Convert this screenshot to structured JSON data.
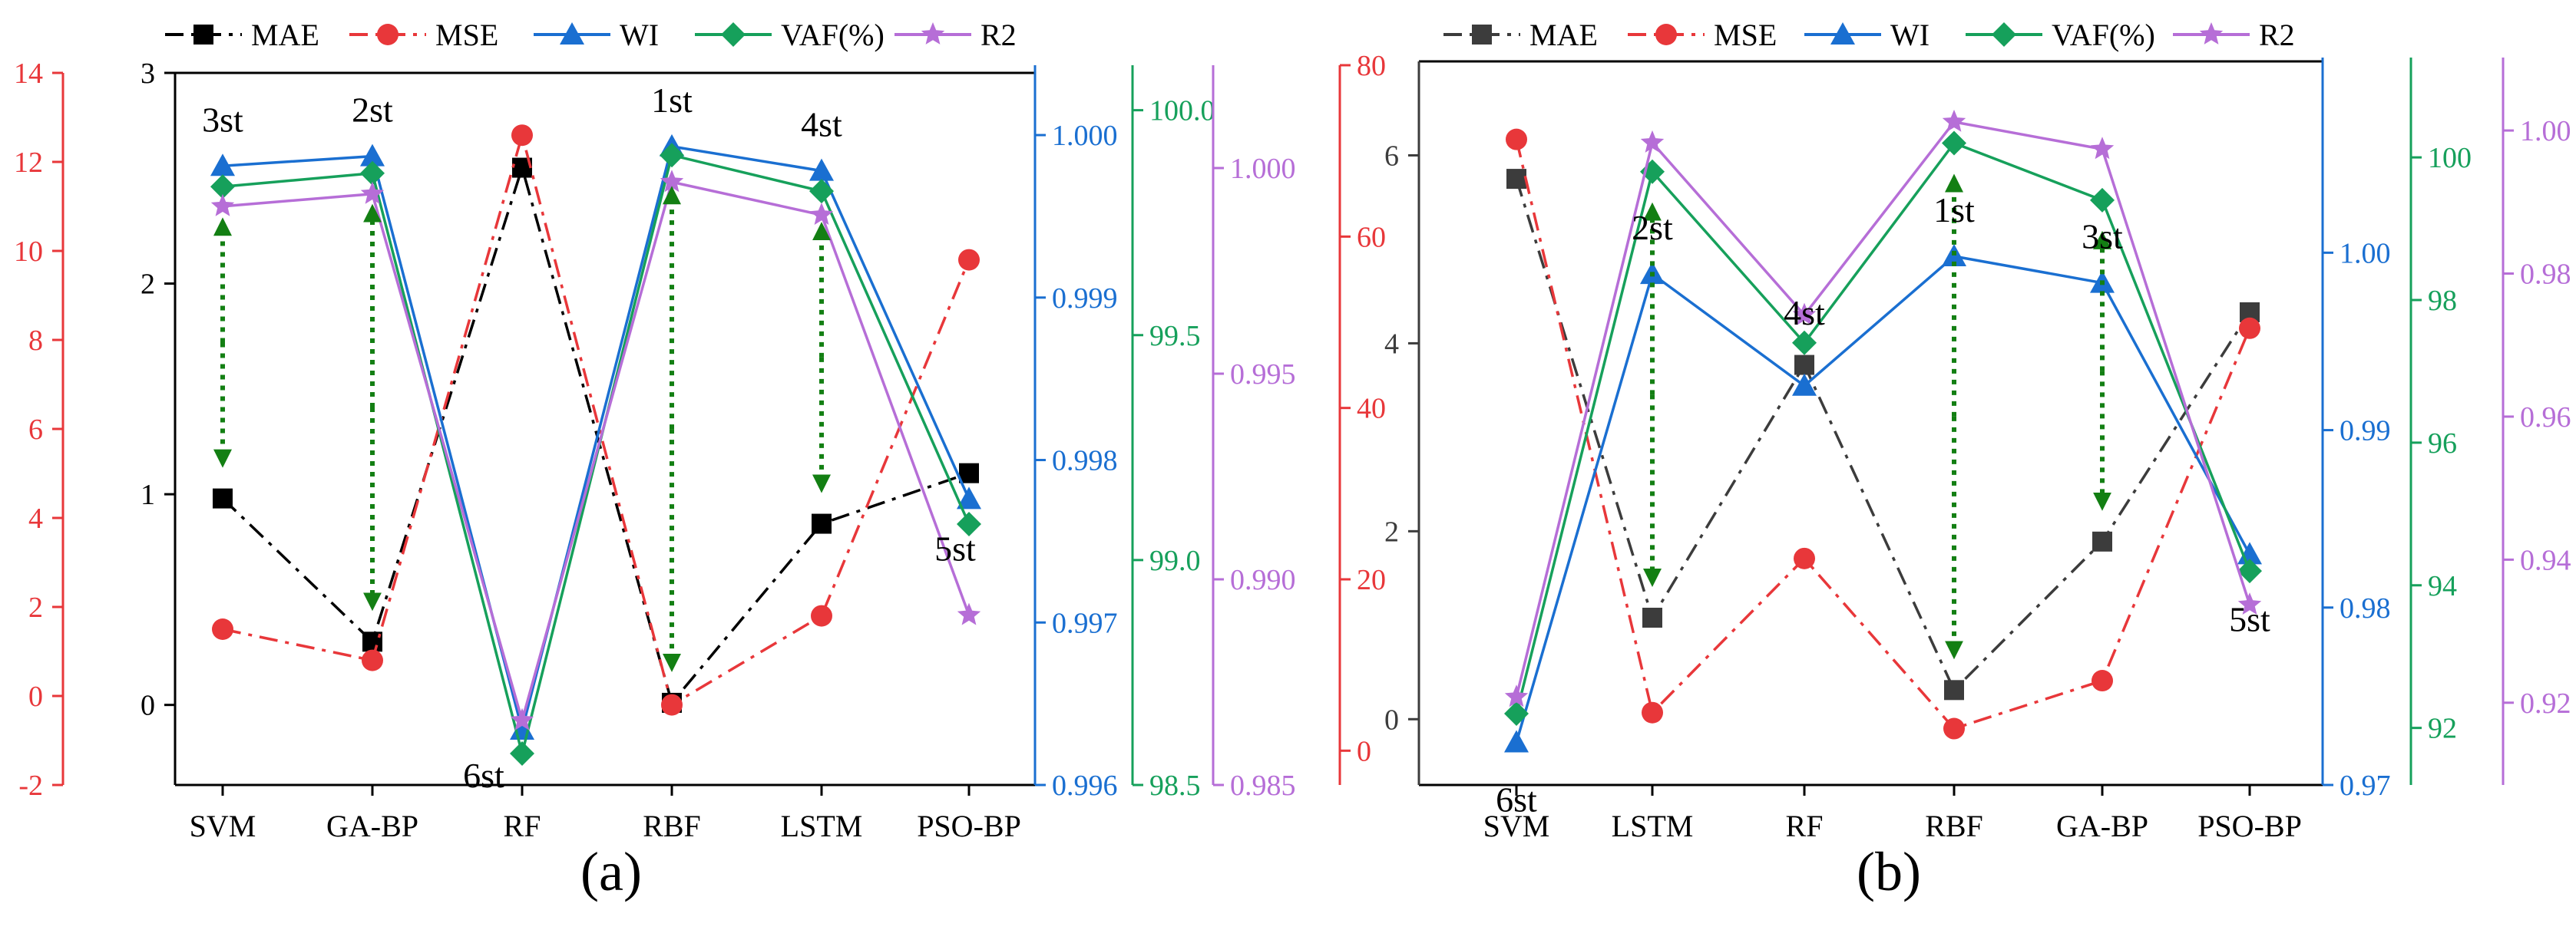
{
  "legend": {
    "entries": [
      {
        "name": "MAE",
        "color": "#000000",
        "dash": "dashdot",
        "marker": "square"
      },
      {
        "name": "MSE",
        "color": "#e8373a",
        "dash": "dashdot",
        "marker": "circle"
      },
      {
        "name": "WI",
        "color": "#1a6fd1",
        "dash": "solid",
        "marker": "triangle"
      },
      {
        "name": "VAF(%)",
        "color": "#16a05b",
        "dash": "solid",
        "marker": "diamond"
      },
      {
        "name": "R2",
        "color": "#b66ed7",
        "dash": "solid",
        "marker": "star"
      }
    ]
  },
  "colors": {
    "mae_a": "#000000",
    "mae_b": "#3c3c3c",
    "mse": "#e8373a",
    "wi": "#1a6fd1",
    "vaf": "#16a05b",
    "r2": "#b66ed7",
    "arrow": "#137f13"
  },
  "chart_data": [
    {
      "type": "line",
      "panel_label": "(a)",
      "categories": [
        "SVM",
        "GA-BP",
        "RF",
        "RBF",
        "LSTM",
        "PSO-BP"
      ],
      "series": [
        {
          "name": "MAE",
          "axis": "MAE",
          "values": [
            0.98,
            0.3,
            2.55,
            0.01,
            0.86,
            1.1
          ]
        },
        {
          "name": "MSE",
          "axis": "MSE",
          "values": [
            1.5,
            0.8,
            12.6,
            -0.2,
            1.8,
            9.8
          ]
        },
        {
          "name": "WI",
          "axis": "WI",
          "values": [
            0.99981,
            0.99987,
            0.99634,
            0.99993,
            0.99978,
            0.99776
          ]
        },
        {
          "name": "VAF(%)",
          "axis": "VAF(%)",
          "values": [
            99.83,
            99.86,
            98.57,
            99.9,
            99.82,
            99.08
          ]
        },
        {
          "name": "R2",
          "axis": "R2",
          "values": [
            0.99907,
            0.99937,
            0.98657,
            0.99966,
            0.99886,
            0.98913
          ]
        }
      ],
      "axes": [
        {
          "name": "MAE",
          "color": "#000000",
          "ticks": [
            "0",
            "1",
            "2",
            "3"
          ],
          "range": [
            -0.38,
            3
          ]
        },
        {
          "name": "MSE",
          "color": "#e8373a",
          "ticks": [
            "-2",
            "0",
            "2",
            "4",
            "6",
            "8",
            "10",
            "12",
            "14"
          ],
          "range": [
            -2,
            14
          ]
        },
        {
          "name": "WI",
          "color": "#1a6fd1",
          "ticks": [
            "0.996",
            "0.997",
            "0.998",
            "0.999",
            "1.000"
          ],
          "range": [
            0.996,
            1.00043
          ]
        },
        {
          "name": "VAF(%)",
          "color": "#16a05b",
          "ticks": [
            "98.5",
            "99.0",
            "99.5",
            "100.0"
          ],
          "range": [
            98.5,
            100.1
          ]
        },
        {
          "name": "R2",
          "color": "#b66ed7",
          "ticks": [
            "0.985",
            "0.990",
            "0.995",
            "1.000"
          ],
          "range": [
            0.985,
            1.0025
          ]
        },
        {
          "name": "MSE (right)",
          "color": "#e8373a",
          "ticks": [
            "0",
            "20",
            "40",
            "60",
            "80"
          ],
          "range": [
            -4,
            80
          ]
        }
      ],
      "rank_labels": [
        {
          "category": "SVM",
          "label": "3st"
        },
        {
          "category": "GA-BP",
          "label": "2st"
        },
        {
          "category": "RF",
          "label": "6st"
        },
        {
          "category": "RBF",
          "label": "1st"
        },
        {
          "category": "LSTM",
          "label": "4st"
        },
        {
          "category": "PSO-BP",
          "label": "5st"
        }
      ],
      "arrows": [
        "SVM",
        "GA-BP",
        "RBF",
        "LSTM"
      ]
    },
    {
      "type": "line",
      "panel_label": "(b)",
      "categories": [
        "SVM",
        "LSTM",
        "RF",
        "RBF",
        "GA-BP",
        "PSO-BP"
      ],
      "series": [
        {
          "name": "MAE",
          "axis": "MAE",
          "values": [
            5.75,
            1.08,
            3.77,
            0.31,
            1.89,
            4.33
          ]
        },
        {
          "name": "MSE",
          "axis": "MAE",
          "values": [
            6.17,
            0.07,
            1.71,
            -0.1,
            0.41,
            4.16
          ]
        },
        {
          "name": "WI",
          "axis": "WI",
          "values": [
            0.9724,
            0.9988,
            0.9925,
            0.9998,
            0.9983,
            0.983
          ]
        },
        {
          "name": "VAF(%)",
          "axis": "VAF(%)",
          "values": [
            92.2,
            99.8,
            97.4,
            100.2,
            99.4,
            94.2
          ]
        },
        {
          "name": "R2",
          "axis": "R2",
          "values": [
            0.9208,
            0.9983,
            0.9742,
            1.0012,
            0.9974,
            0.9337
          ]
        }
      ],
      "axes": [
        {
          "name": "MAE",
          "color": "#3c3c3c",
          "ticks": [
            "0",
            "2",
            "4",
            "6"
          ],
          "range": [
            -0.7,
            7
          ]
        },
        {
          "name": "WI",
          "color": "#1a6fd1",
          "ticks": [
            "0.97",
            "0.98",
            "0.99",
            "1.00"
          ],
          "range": [
            0.97,
            1.011
          ]
        },
        {
          "name": "VAF(%)",
          "color": "#16a05b",
          "ticks": [
            "92",
            "94",
            "96",
            "98",
            "100"
          ],
          "range": [
            91.2,
            101.4
          ]
        },
        {
          "name": "R2",
          "color": "#b66ed7",
          "ticks": [
            "0.92",
            "0.94",
            "0.96",
            "0.98",
            "1.00"
          ],
          "range": [
            0.9085,
            1.0102
          ]
        }
      ],
      "rank_labels": [
        {
          "category": "SVM",
          "label": "6st"
        },
        {
          "category": "LSTM",
          "label": "2st"
        },
        {
          "category": "RF",
          "label": "4st"
        },
        {
          "category": "RBF",
          "label": "1st"
        },
        {
          "category": "GA-BP",
          "label": "3st"
        },
        {
          "category": "PSO-BP",
          "label": "5st"
        }
      ],
      "arrows": [
        "LSTM",
        "RBF",
        "GA-BP"
      ]
    }
  ]
}
